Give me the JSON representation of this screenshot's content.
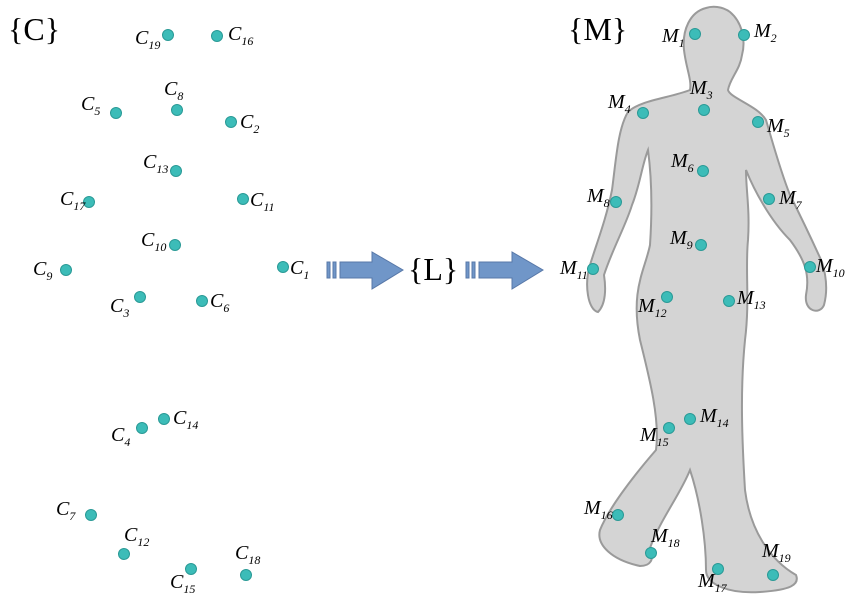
{
  "source_set": {
    "title": "{C}",
    "points": [
      {
        "letter": "C",
        "sub": "19"
      },
      {
        "letter": "C",
        "sub": "16"
      },
      {
        "letter": "C",
        "sub": "8"
      },
      {
        "letter": "C",
        "sub": "5"
      },
      {
        "letter": "C",
        "sub": "2"
      },
      {
        "letter": "C",
        "sub": "13"
      },
      {
        "letter": "C",
        "sub": "17"
      },
      {
        "letter": "C",
        "sub": "11"
      },
      {
        "letter": "C",
        "sub": "10"
      },
      {
        "letter": "C",
        "sub": "9"
      },
      {
        "letter": "C",
        "sub": "1"
      },
      {
        "letter": "C",
        "sub": "3"
      },
      {
        "letter": "C",
        "sub": "6"
      },
      {
        "letter": "C",
        "sub": "4"
      },
      {
        "letter": "C",
        "sub": "14"
      },
      {
        "letter": "C",
        "sub": "7"
      },
      {
        "letter": "C",
        "sub": "12"
      },
      {
        "letter": "C",
        "sub": "15"
      },
      {
        "letter": "C",
        "sub": "18"
      }
    ]
  },
  "mapping": {
    "title": "{L}"
  },
  "target_set": {
    "title": "{M}",
    "points": [
      {
        "letter": "M",
        "sub": "1"
      },
      {
        "letter": "M",
        "sub": "2"
      },
      {
        "letter": "M",
        "sub": "3"
      },
      {
        "letter": "M",
        "sub": "4"
      },
      {
        "letter": "M",
        "sub": "5"
      },
      {
        "letter": "M",
        "sub": "6"
      },
      {
        "letter": "M",
        "sub": "7"
      },
      {
        "letter": "M",
        "sub": "8"
      },
      {
        "letter": "M",
        "sub": "9"
      },
      {
        "letter": "M",
        "sub": "10"
      },
      {
        "letter": "M",
        "sub": "11"
      },
      {
        "letter": "M",
        "sub": "12"
      },
      {
        "letter": "M",
        "sub": "13"
      },
      {
        "letter": "M",
        "sub": "14"
      },
      {
        "letter": "M",
        "sub": "15"
      },
      {
        "letter": "M",
        "sub": "16"
      },
      {
        "letter": "M",
        "sub": "18"
      },
      {
        "letter": "M",
        "sub": "17"
      },
      {
        "letter": "M",
        "sub": "19"
      }
    ]
  }
}
